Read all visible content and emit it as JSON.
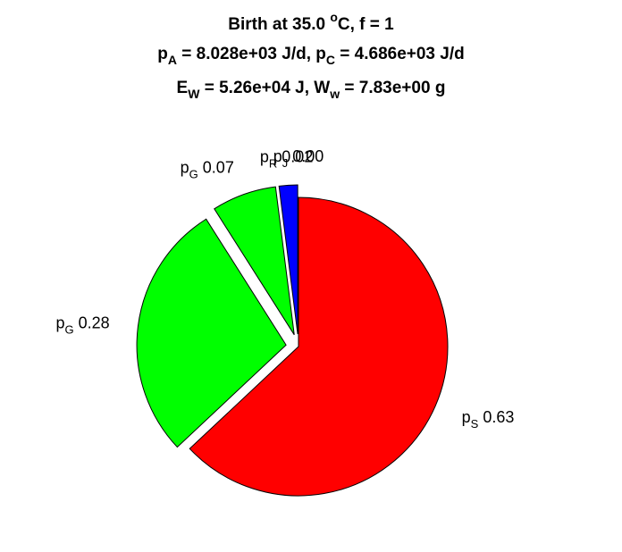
{
  "chart_data": {
    "type": "pie",
    "title_lines": [
      {
        "parts": [
          {
            "t": "Birth at 35.0 "
          },
          {
            "t": "o",
            "sup": true
          },
          {
            "t": "C, f = 1"
          }
        ]
      },
      {
        "parts": [
          {
            "t": "p"
          },
          {
            "t": "A",
            "sub": true
          },
          {
            "t": " = 8.028e+03 J/d, p"
          },
          {
            "t": "C",
            "sub": true
          },
          {
            "t": " = 4.686e+03 J/d"
          }
        ]
      },
      {
        "parts": [
          {
            "t": "E"
          },
          {
            "t": "W",
            "sub": true
          },
          {
            "t": " = 5.26e+04 J, W"
          },
          {
            "t": "w",
            "sub": true
          },
          {
            "t": " = 7.83e+00 g"
          }
        ]
      }
    ],
    "slices": [
      {
        "base": "p",
        "sub": "S",
        "value": 0.63,
        "label": " 0.63",
        "color": "#ff0000",
        "explode": false
      },
      {
        "base": "p",
        "sub": "G",
        "value": 0.28,
        "label": " 0.28",
        "color": "#00ff00",
        "explode": true
      },
      {
        "base": "p",
        "sub": "G",
        "value": 0.07,
        "label": " 0.07",
        "color": "#00ff00",
        "explode": true
      },
      {
        "base": "p",
        "sub": "R",
        "value": 0.02,
        "label": " 0.02",
        "color": "#0000ff",
        "explode": true
      },
      {
        "base": "p",
        "sub": "J",
        "value": 0.0,
        "label": " 0.00",
        "color": "#ffff00",
        "explode": true
      }
    ]
  }
}
